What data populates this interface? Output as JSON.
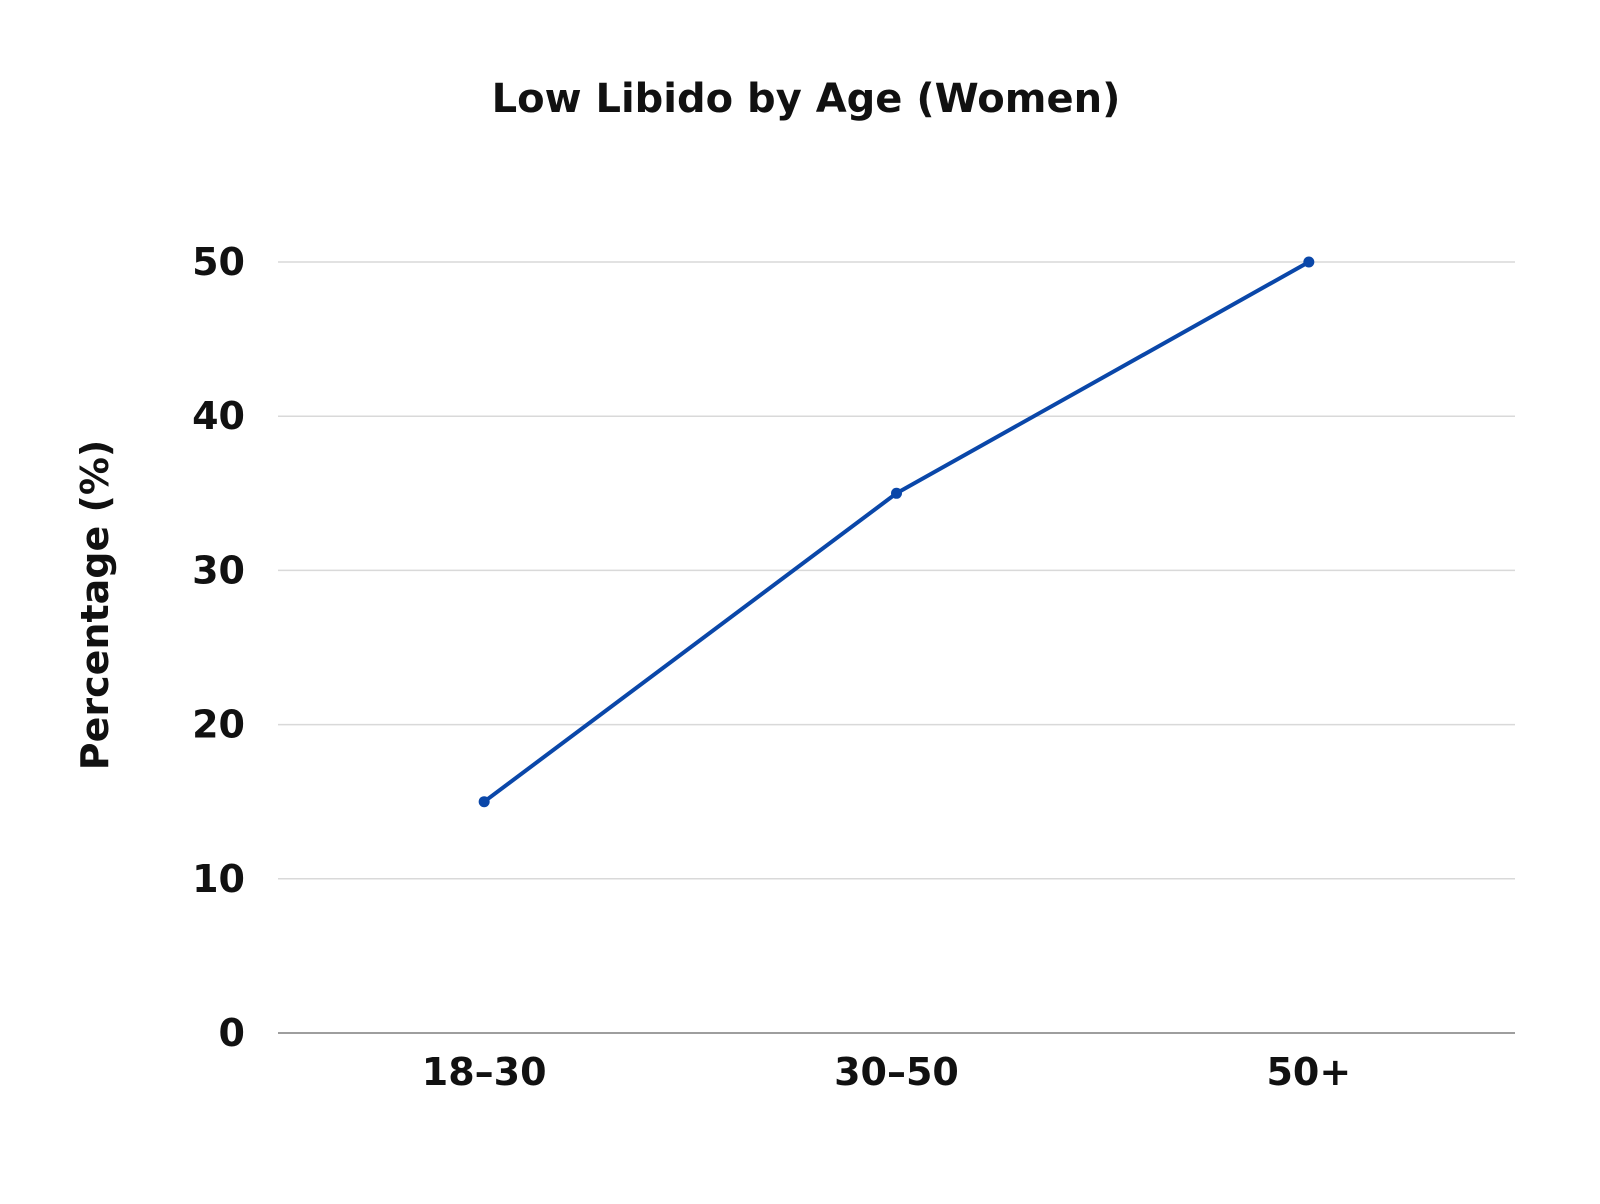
{
  "chart_data": {
    "type": "line",
    "title": "Low Libido by Age (Women)",
    "xlabel": "",
    "ylabel": "Percentage (%)",
    "categories": [
      "18–30",
      "30–50",
      "50+"
    ],
    "series": [
      {
        "values": [
          15,
          35,
          50
        ]
      }
    ],
    "ylim": [
      0,
      50
    ],
    "yticks": [
      0,
      10,
      20,
      30,
      40,
      50
    ],
    "grid": true,
    "legend": "none",
    "line_color": "#0a47a9",
    "grid_color": "#d9d9d9",
    "axis_color": "#9e9e9e"
  }
}
